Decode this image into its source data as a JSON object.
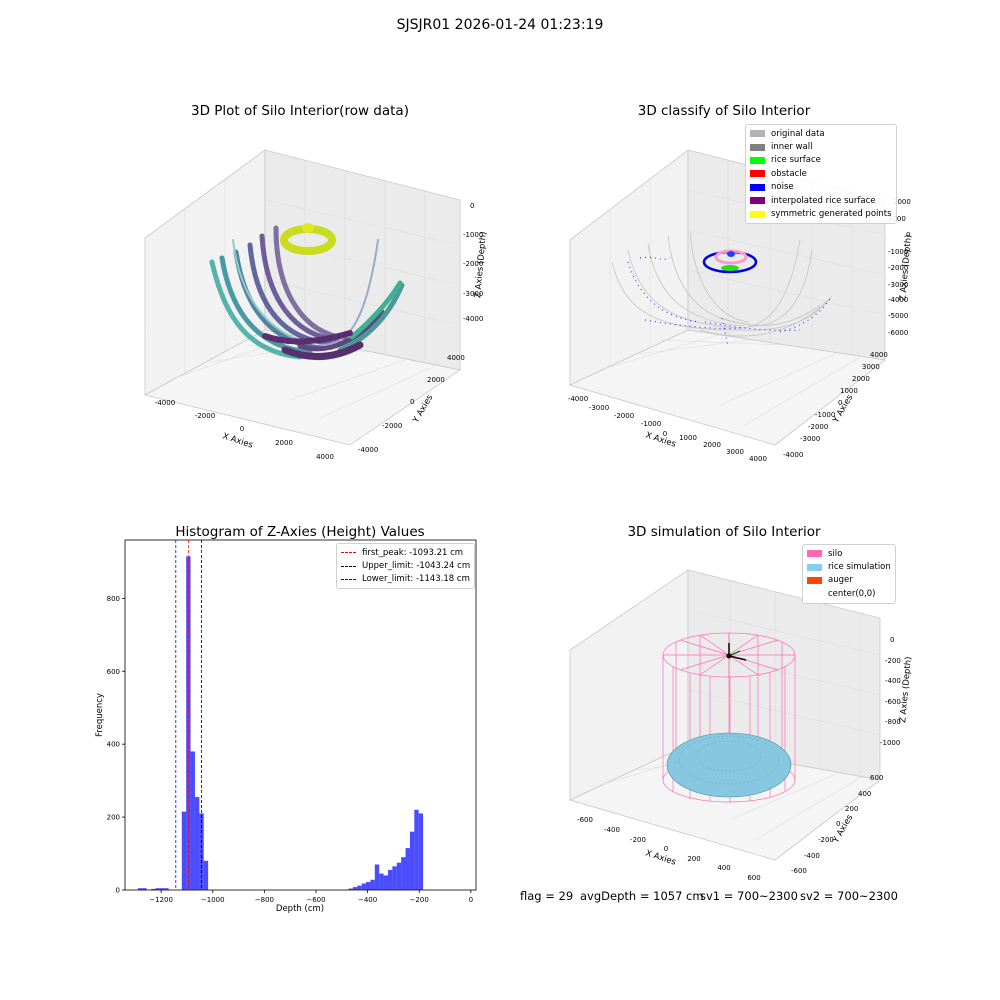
{
  "figure": {
    "suptitle": "SJSJR01 2026-01-24 01:23:19"
  },
  "panels": {
    "raw": {
      "title": "3D Plot of Silo Interior(row data)",
      "xlabel": "X Axies",
      "ylabel": "Y Axies",
      "zlabel": "Z Axies (Depth)",
      "xticks": [
        "-4000",
        "-2000",
        "0",
        "2000",
        "4000"
      ],
      "yticks": [
        "4000",
        "2000",
        "0",
        "-2000",
        "-4000"
      ],
      "zticks": [
        "0",
        "-1000",
        "-2000",
        "-3000",
        "-4000"
      ]
    },
    "classify": {
      "title": "3D classify of Silo Interior",
      "xlabel": "X Axies",
      "ylabel": "Y Axies",
      "zlabel": "Z Axies (Depth)",
      "xticks": [
        "-4000",
        "-3000",
        "-2000",
        "-1000",
        "0",
        "1000",
        "2000",
        "3000",
        "4000"
      ],
      "yticks": [
        "4000",
        "3000",
        "2000",
        "1000",
        "0",
        "-1000",
        "-2000",
        "-3000",
        "-4000"
      ],
      "zticks": [
        "2000",
        "1000",
        "0",
        "-1000",
        "-2000",
        "-3000",
        "-4000",
        "-5000",
        "-6000"
      ],
      "legend": [
        {
          "label": "original data",
          "color": "#b3b3b3"
        },
        {
          "label": "inner wall",
          "color": "#808080"
        },
        {
          "label": "rice surface",
          "color": "#00ff00"
        },
        {
          "label": "obstacle",
          "color": "#ff0000"
        },
        {
          "label": "noise",
          "color": "#0000ff"
        },
        {
          "label": "interpolated rice surface",
          "color": "#800080"
        },
        {
          "label": "symmetric generated points",
          "color": "#ffff00"
        }
      ]
    },
    "simulation": {
      "title": "3D simulation of Silo Interior",
      "xlabel": "X Axies",
      "ylabel": "Y Axies",
      "zlabel": "Z Axies (Depth)",
      "xticks": [
        "-600",
        "-400",
        "-200",
        "0",
        "200",
        "400",
        "600"
      ],
      "yticks": [
        "600",
        "400",
        "200",
        "0",
        "-200",
        "-400",
        "-600"
      ],
      "zticks": [
        "0",
        "-200",
        "-400",
        "-600",
        "-800",
        "-1000"
      ],
      "legend": [
        {
          "label": "silo",
          "color": "#ff69b4"
        },
        {
          "label": "rice simulation",
          "color": "#87ceeb"
        },
        {
          "label": "auger",
          "color": "#ff4500"
        },
        {
          "label": "center(0,0)",
          "color": ""
        }
      ]
    }
  },
  "status": {
    "flag": "flag = 29",
    "avg_depth": "avgDepth = 1057 cm",
    "sv1": "sv1 = 700~2300",
    "sv2": "sv2 = 700~2300"
  },
  "chart_data": {
    "type": "bar",
    "title": "Histogram of Z-Axies (Height) Values",
    "xlabel": "Depth (cm)",
    "ylabel": "Frequency",
    "xlim": [
      -1340,
      20
    ],
    "ylim": [
      0,
      960
    ],
    "xticks": [
      -1200,
      -1000,
      -800,
      -600,
      -400,
      -200,
      0
    ],
    "yticks": [
      0,
      200,
      400,
      600,
      800
    ],
    "bar_color": "#0000ff",
    "bin_width": 17,
    "bins": [
      {
        "x": -1290,
        "y": 5
      },
      {
        "x": -1273,
        "y": 5
      },
      {
        "x": -1239,
        "y": 3
      },
      {
        "x": -1222,
        "y": 5
      },
      {
        "x": -1205,
        "y": 5
      },
      {
        "x": -1188,
        "y": 5
      },
      {
        "x": -1120,
        "y": 215
      },
      {
        "x": -1103,
        "y": 915
      },
      {
        "x": -1086,
        "y": 380
      },
      {
        "x": -1069,
        "y": 255
      },
      {
        "x": -1052,
        "y": 210
      },
      {
        "x": -1035,
        "y": 80
      },
      {
        "x": -474,
        "y": 4
      },
      {
        "x": -457,
        "y": 8
      },
      {
        "x": -440,
        "y": 12
      },
      {
        "x": -423,
        "y": 18
      },
      {
        "x": -406,
        "y": 22
      },
      {
        "x": -389,
        "y": 28
      },
      {
        "x": -372,
        "y": 70
      },
      {
        "x": -355,
        "y": 45
      },
      {
        "x": -338,
        "y": 40
      },
      {
        "x": -321,
        "y": 55
      },
      {
        "x": -304,
        "y": 65
      },
      {
        "x": -287,
        "y": 75
      },
      {
        "x": -270,
        "y": 90
      },
      {
        "x": -253,
        "y": 115
      },
      {
        "x": -236,
        "y": 160
      },
      {
        "x": -219,
        "y": 220
      },
      {
        "x": -202,
        "y": 210
      }
    ],
    "vlines": [
      {
        "label": "first_peak: -1093.21 cm",
        "x": -1093.21,
        "color": "#ff0000"
      },
      {
        "label": "Upper_limit: -1043.24 cm",
        "x": -1043.24,
        "color": "#000000"
      },
      {
        "label": "Lower_limit: -1143.18 cm",
        "x": -1143.18,
        "color": "#0000ff"
      }
    ]
  }
}
